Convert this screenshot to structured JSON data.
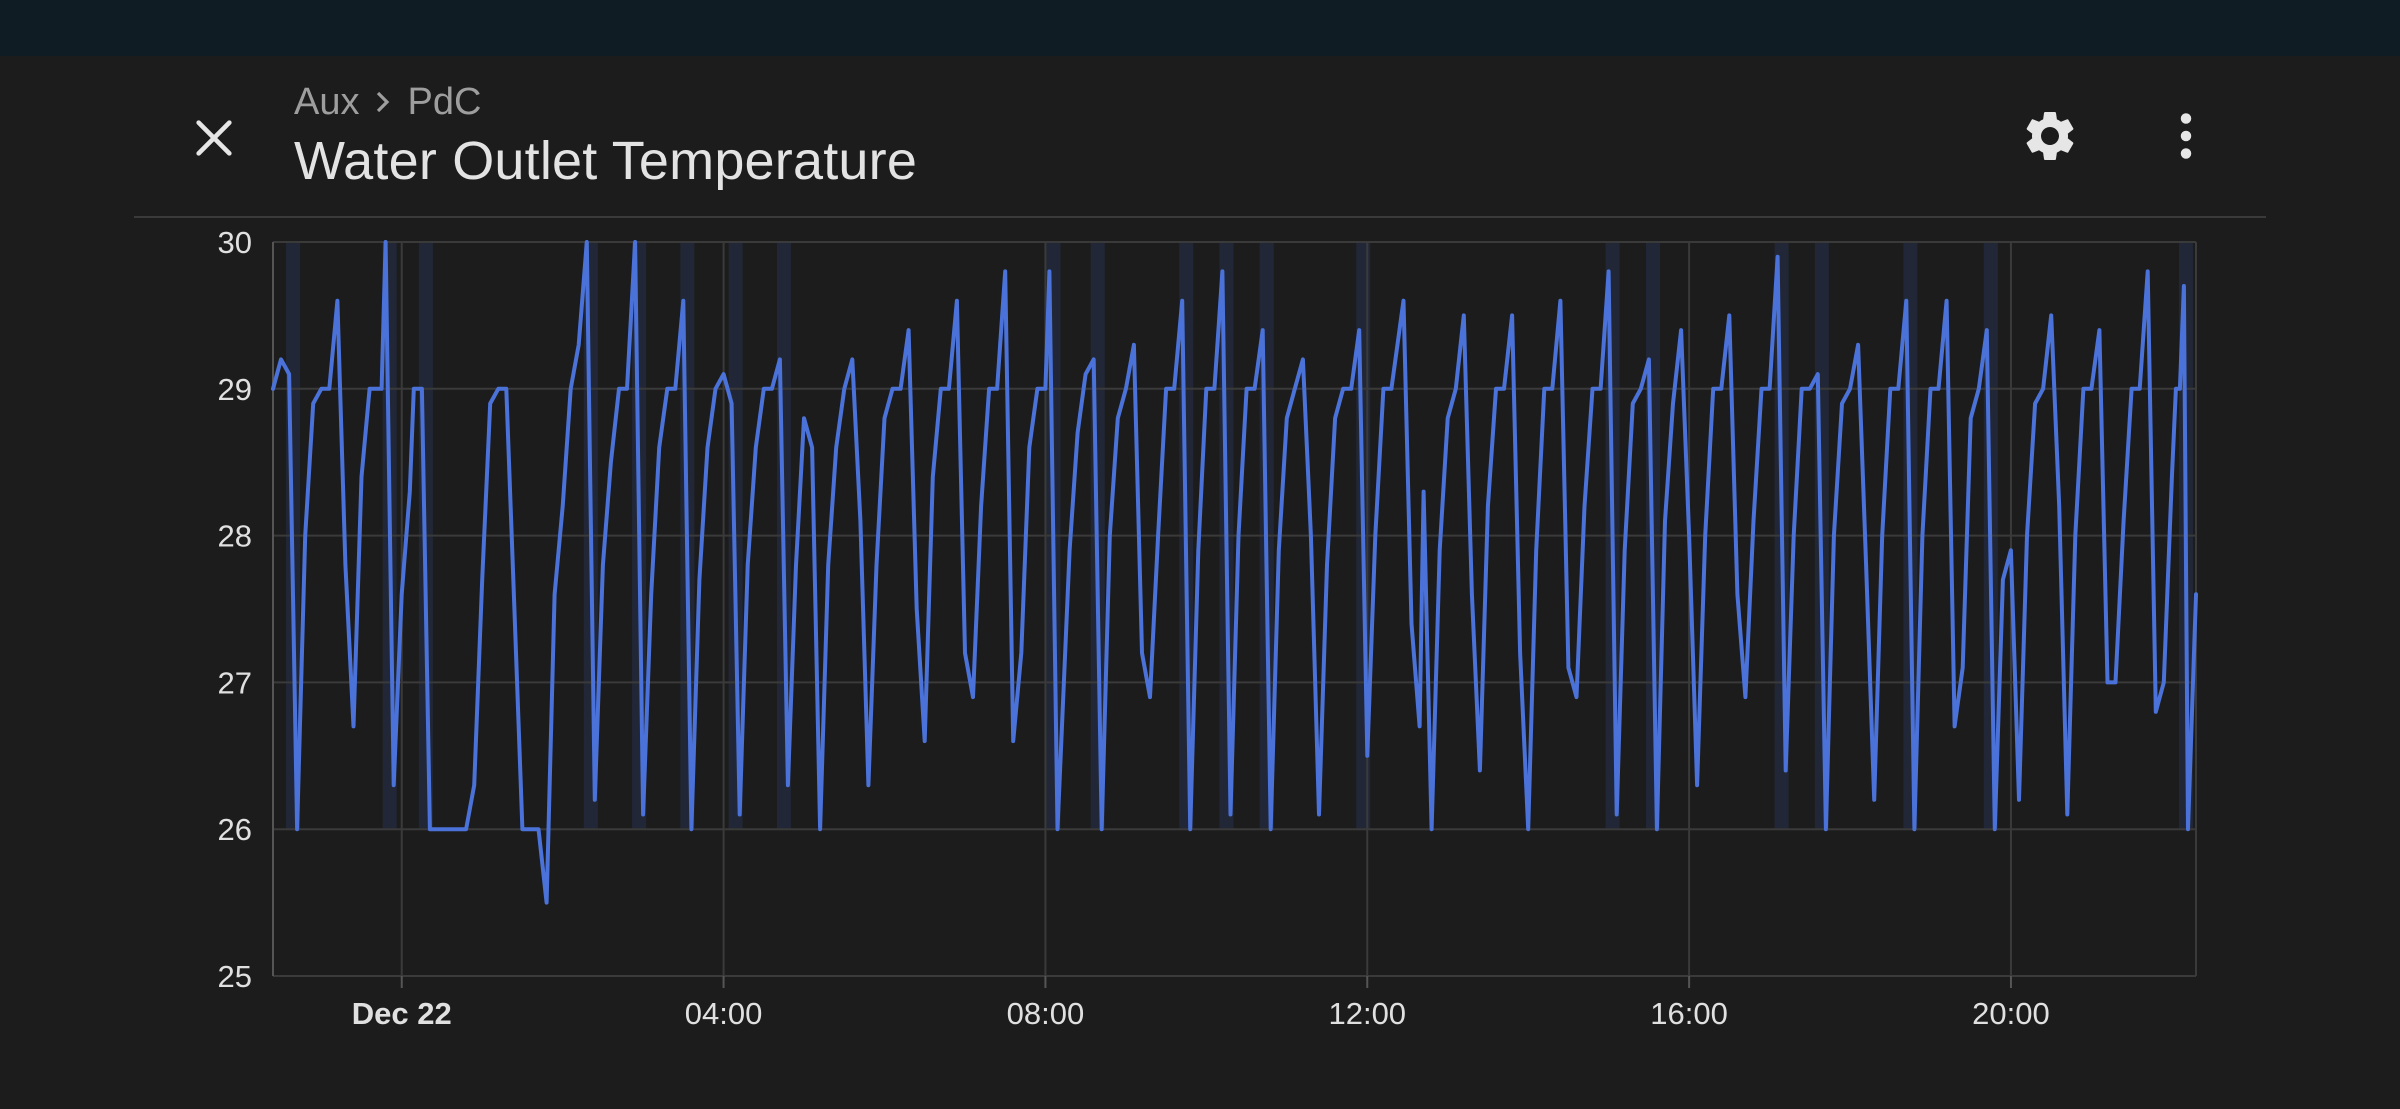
{
  "header": {
    "breadcrumb": [
      "Aux",
      "PdC"
    ],
    "title": "Water Outlet Temperature"
  },
  "icons": {
    "close": "close-icon",
    "settings": "gear-icon",
    "more": "more-vert-icon",
    "separator": "chevron-right-icon"
  },
  "colors": {
    "background": "#1c1c1c",
    "status_bar": "#101c24",
    "line": "#4a72d8",
    "band": "#26324c",
    "grid": "#3a3a3a"
  },
  "chart_data": {
    "type": "line",
    "title": "",
    "xlabel": "",
    "ylabel": "",
    "ylim": [
      25,
      30
    ],
    "yticks": [
      "25",
      "26",
      "27",
      "28",
      "29",
      "30"
    ],
    "xticks": [
      {
        "label": "Dec 22",
        "hour": 0
      },
      {
        "label": "04:00",
        "hour": 4
      },
      {
        "label": "08:00",
        "hour": 8
      },
      {
        "label": "12:00",
        "hour": 12
      },
      {
        "label": "16:00",
        "hour": 16
      },
      {
        "label": "20:00",
        "hour": 20
      }
    ],
    "xlim_hours": [
      -1.6,
      22.3
    ],
    "grid": true,
    "series": [
      {
        "name": "",
        "points": [
          [
            -1.6,
            29.0
          ],
          [
            -1.5,
            29.2
          ],
          [
            -1.4,
            29.1
          ],
          [
            -1.3,
            26.0
          ],
          [
            -1.2,
            28.0
          ],
          [
            -1.1,
            28.9
          ],
          [
            -1.0,
            29.0
          ],
          [
            -0.9,
            29.0
          ],
          [
            -0.8,
            29.6
          ],
          [
            -0.7,
            27.8
          ],
          [
            -0.6,
            26.7
          ],
          [
            -0.5,
            28.4
          ],
          [
            -0.4,
            29.0
          ],
          [
            -0.3,
            29.0
          ],
          [
            -0.25,
            29.0
          ],
          [
            -0.2,
            30.0
          ],
          [
            -0.1,
            26.3
          ],
          [
            0.0,
            27.6
          ],
          [
            0.1,
            28.3
          ],
          [
            0.15,
            29.0
          ],
          [
            0.25,
            29.0
          ],
          [
            0.35,
            26.0
          ],
          [
            0.5,
            26.0
          ],
          [
            0.7,
            26.0
          ],
          [
            0.8,
            26.0
          ],
          [
            0.9,
            26.3
          ],
          [
            1.0,
            27.7
          ],
          [
            1.1,
            28.9
          ],
          [
            1.2,
            29.0
          ],
          [
            1.3,
            29.0
          ],
          [
            1.4,
            27.5
          ],
          [
            1.5,
            26.0
          ],
          [
            1.6,
            26.0
          ],
          [
            1.7,
            26.0
          ],
          [
            1.8,
            25.5
          ],
          [
            1.9,
            27.6
          ],
          [
            2.0,
            28.2
          ],
          [
            2.1,
            29.0
          ],
          [
            2.2,
            29.3
          ],
          [
            2.3,
            30.0
          ],
          [
            2.4,
            26.2
          ],
          [
            2.5,
            27.8
          ],
          [
            2.6,
            28.5
          ],
          [
            2.7,
            29.0
          ],
          [
            2.8,
            29.0
          ],
          [
            2.9,
            30.0
          ],
          [
            3.0,
            26.1
          ],
          [
            3.1,
            27.6
          ],
          [
            3.2,
            28.6
          ],
          [
            3.3,
            29.0
          ],
          [
            3.4,
            29.0
          ],
          [
            3.5,
            29.6
          ],
          [
            3.6,
            26.0
          ],
          [
            3.7,
            27.7
          ],
          [
            3.8,
            28.6
          ],
          [
            3.9,
            29.0
          ],
          [
            4.0,
            29.1
          ],
          [
            4.1,
            28.9
          ],
          [
            4.2,
            26.1
          ],
          [
            4.3,
            27.8
          ],
          [
            4.4,
            28.6
          ],
          [
            4.5,
            29.0
          ],
          [
            4.6,
            29.0
          ],
          [
            4.7,
            29.2
          ],
          [
            4.8,
            26.3
          ],
          [
            4.9,
            27.8
          ],
          [
            5.0,
            28.8
          ],
          [
            5.1,
            28.6
          ],
          [
            5.2,
            26.0
          ],
          [
            5.3,
            27.8
          ],
          [
            5.4,
            28.6
          ],
          [
            5.5,
            29.0
          ],
          [
            5.6,
            29.2
          ],
          [
            5.7,
            28.1
          ],
          [
            5.8,
            26.3
          ],
          [
            5.9,
            27.8
          ],
          [
            6.0,
            28.8
          ],
          [
            6.1,
            29.0
          ],
          [
            6.2,
            29.0
          ],
          [
            6.3,
            29.4
          ],
          [
            6.4,
            27.5
          ],
          [
            6.5,
            26.6
          ],
          [
            6.6,
            28.4
          ],
          [
            6.7,
            29.0
          ],
          [
            6.8,
            29.0
          ],
          [
            6.9,
            29.6
          ],
          [
            7.0,
            27.2
          ],
          [
            7.1,
            26.9
          ],
          [
            7.2,
            28.2
          ],
          [
            7.3,
            29.0
          ],
          [
            7.4,
            29.0
          ],
          [
            7.5,
            29.8
          ],
          [
            7.6,
            26.6
          ],
          [
            7.7,
            27.2
          ],
          [
            7.8,
            28.6
          ],
          [
            7.9,
            29.0
          ],
          [
            8.0,
            29.0
          ],
          [
            8.05,
            29.8
          ],
          [
            8.15,
            26.0
          ],
          [
            8.3,
            27.9
          ],
          [
            8.4,
            28.7
          ],
          [
            8.5,
            29.1
          ],
          [
            8.6,
            29.2
          ],
          [
            8.7,
            26.0
          ],
          [
            8.8,
            28.0
          ],
          [
            8.9,
            28.8
          ],
          [
            9.0,
            29.0
          ],
          [
            9.1,
            29.3
          ],
          [
            9.2,
            27.2
          ],
          [
            9.3,
            26.9
          ],
          [
            9.4,
            28.0
          ],
          [
            9.5,
            29.0
          ],
          [
            9.6,
            29.0
          ],
          [
            9.7,
            29.6
          ],
          [
            9.8,
            26.0
          ],
          [
            9.9,
            27.9
          ],
          [
            10.0,
            29.0
          ],
          [
            10.1,
            29.0
          ],
          [
            10.2,
            29.8
          ],
          [
            10.3,
            26.1
          ],
          [
            10.4,
            28.0
          ],
          [
            10.5,
            29.0
          ],
          [
            10.6,
            29.0
          ],
          [
            10.7,
            29.4
          ],
          [
            10.8,
            26.0
          ],
          [
            10.9,
            27.9
          ],
          [
            11.0,
            28.8
          ],
          [
            11.1,
            29.0
          ],
          [
            11.2,
            29.2
          ],
          [
            11.3,
            28.0
          ],
          [
            11.4,
            26.1
          ],
          [
            11.5,
            27.8
          ],
          [
            11.6,
            28.8
          ],
          [
            11.7,
            29.0
          ],
          [
            11.8,
            29.0
          ],
          [
            11.9,
            29.4
          ],
          [
            12.0,
            26.5
          ],
          [
            12.1,
            28.0
          ],
          [
            12.2,
            29.0
          ],
          [
            12.3,
            29.0
          ],
          [
            12.45,
            29.6
          ],
          [
            12.55,
            27.4
          ],
          [
            12.65,
            26.7
          ],
          [
            12.7,
            28.3
          ],
          [
            12.8,
            26.0
          ],
          [
            12.9,
            27.9
          ],
          [
            13.0,
            28.8
          ],
          [
            13.1,
            29.0
          ],
          [
            13.2,
            29.5
          ],
          [
            13.3,
            27.6
          ],
          [
            13.4,
            26.4
          ],
          [
            13.5,
            28.2
          ],
          [
            13.6,
            29.0
          ],
          [
            13.7,
            29.0
          ],
          [
            13.8,
            29.5
          ],
          [
            13.9,
            27.2
          ],
          [
            14.0,
            26.0
          ],
          [
            14.1,
            27.9
          ],
          [
            14.2,
            29.0
          ],
          [
            14.3,
            29.0
          ],
          [
            14.4,
            29.6
          ],
          [
            14.5,
            27.1
          ],
          [
            14.6,
            26.9
          ],
          [
            14.7,
            28.2
          ],
          [
            14.8,
            29.0
          ],
          [
            14.9,
            29.0
          ],
          [
            15.0,
            29.8
          ],
          [
            15.1,
            26.1
          ],
          [
            15.2,
            27.9
          ],
          [
            15.3,
            28.9
          ],
          [
            15.4,
            29.0
          ],
          [
            15.5,
            29.2
          ],
          [
            15.6,
            26.0
          ],
          [
            15.7,
            28.1
          ],
          [
            15.8,
            28.9
          ],
          [
            15.9,
            29.4
          ],
          [
            16.0,
            28.0
          ],
          [
            16.1,
            26.3
          ],
          [
            16.2,
            28.0
          ],
          [
            16.3,
            29.0
          ],
          [
            16.4,
            29.0
          ],
          [
            16.5,
            29.5
          ],
          [
            16.6,
            27.6
          ],
          [
            16.7,
            26.9
          ],
          [
            16.8,
            28.1
          ],
          [
            16.9,
            29.0
          ],
          [
            17.0,
            29.0
          ],
          [
            17.1,
            29.9
          ],
          [
            17.2,
            26.4
          ],
          [
            17.3,
            28.0
          ],
          [
            17.4,
            29.0
          ],
          [
            17.5,
            29.0
          ],
          [
            17.6,
            29.1
          ],
          [
            17.7,
            26.0
          ],
          [
            17.8,
            28.0
          ],
          [
            17.9,
            28.9
          ],
          [
            18.0,
            29.0
          ],
          [
            18.1,
            29.3
          ],
          [
            18.2,
            27.8
          ],
          [
            18.3,
            26.2
          ],
          [
            18.4,
            28.0
          ],
          [
            18.5,
            29.0
          ],
          [
            18.6,
            29.0
          ],
          [
            18.7,
            29.6
          ],
          [
            18.8,
            26.0
          ],
          [
            18.9,
            28.0
          ],
          [
            19.0,
            29.0
          ],
          [
            19.1,
            29.0
          ],
          [
            19.2,
            29.6
          ],
          [
            19.3,
            26.7
          ],
          [
            19.4,
            27.1
          ],
          [
            19.5,
            28.8
          ],
          [
            19.6,
            29.0
          ],
          [
            19.7,
            29.4
          ],
          [
            19.8,
            26.0
          ],
          [
            19.9,
            27.7
          ],
          [
            20.0,
            27.9
          ],
          [
            20.1,
            26.2
          ],
          [
            20.2,
            28.0
          ],
          [
            20.3,
            28.9
          ],
          [
            20.4,
            29.0
          ],
          [
            20.5,
            29.5
          ],
          [
            20.6,
            28.2
          ],
          [
            20.7,
            26.1
          ],
          [
            20.8,
            28.0
          ],
          [
            20.9,
            29.0
          ],
          [
            21.0,
            29.0
          ],
          [
            21.1,
            29.4
          ],
          [
            21.2,
            27.0
          ],
          [
            21.3,
            27.0
          ],
          [
            21.4,
            28.1
          ],
          [
            21.5,
            29.0
          ],
          [
            21.6,
            29.0
          ],
          [
            21.7,
            29.8
          ],
          [
            21.8,
            26.8
          ],
          [
            21.9,
            27.0
          ],
          [
            22.0,
            28.4
          ],
          [
            22.05,
            29.0
          ],
          [
            22.1,
            29.0
          ],
          [
            22.15,
            29.7
          ],
          [
            22.2,
            26.0
          ],
          [
            22.3,
            27.6
          ]
        ]
      }
    ]
  }
}
